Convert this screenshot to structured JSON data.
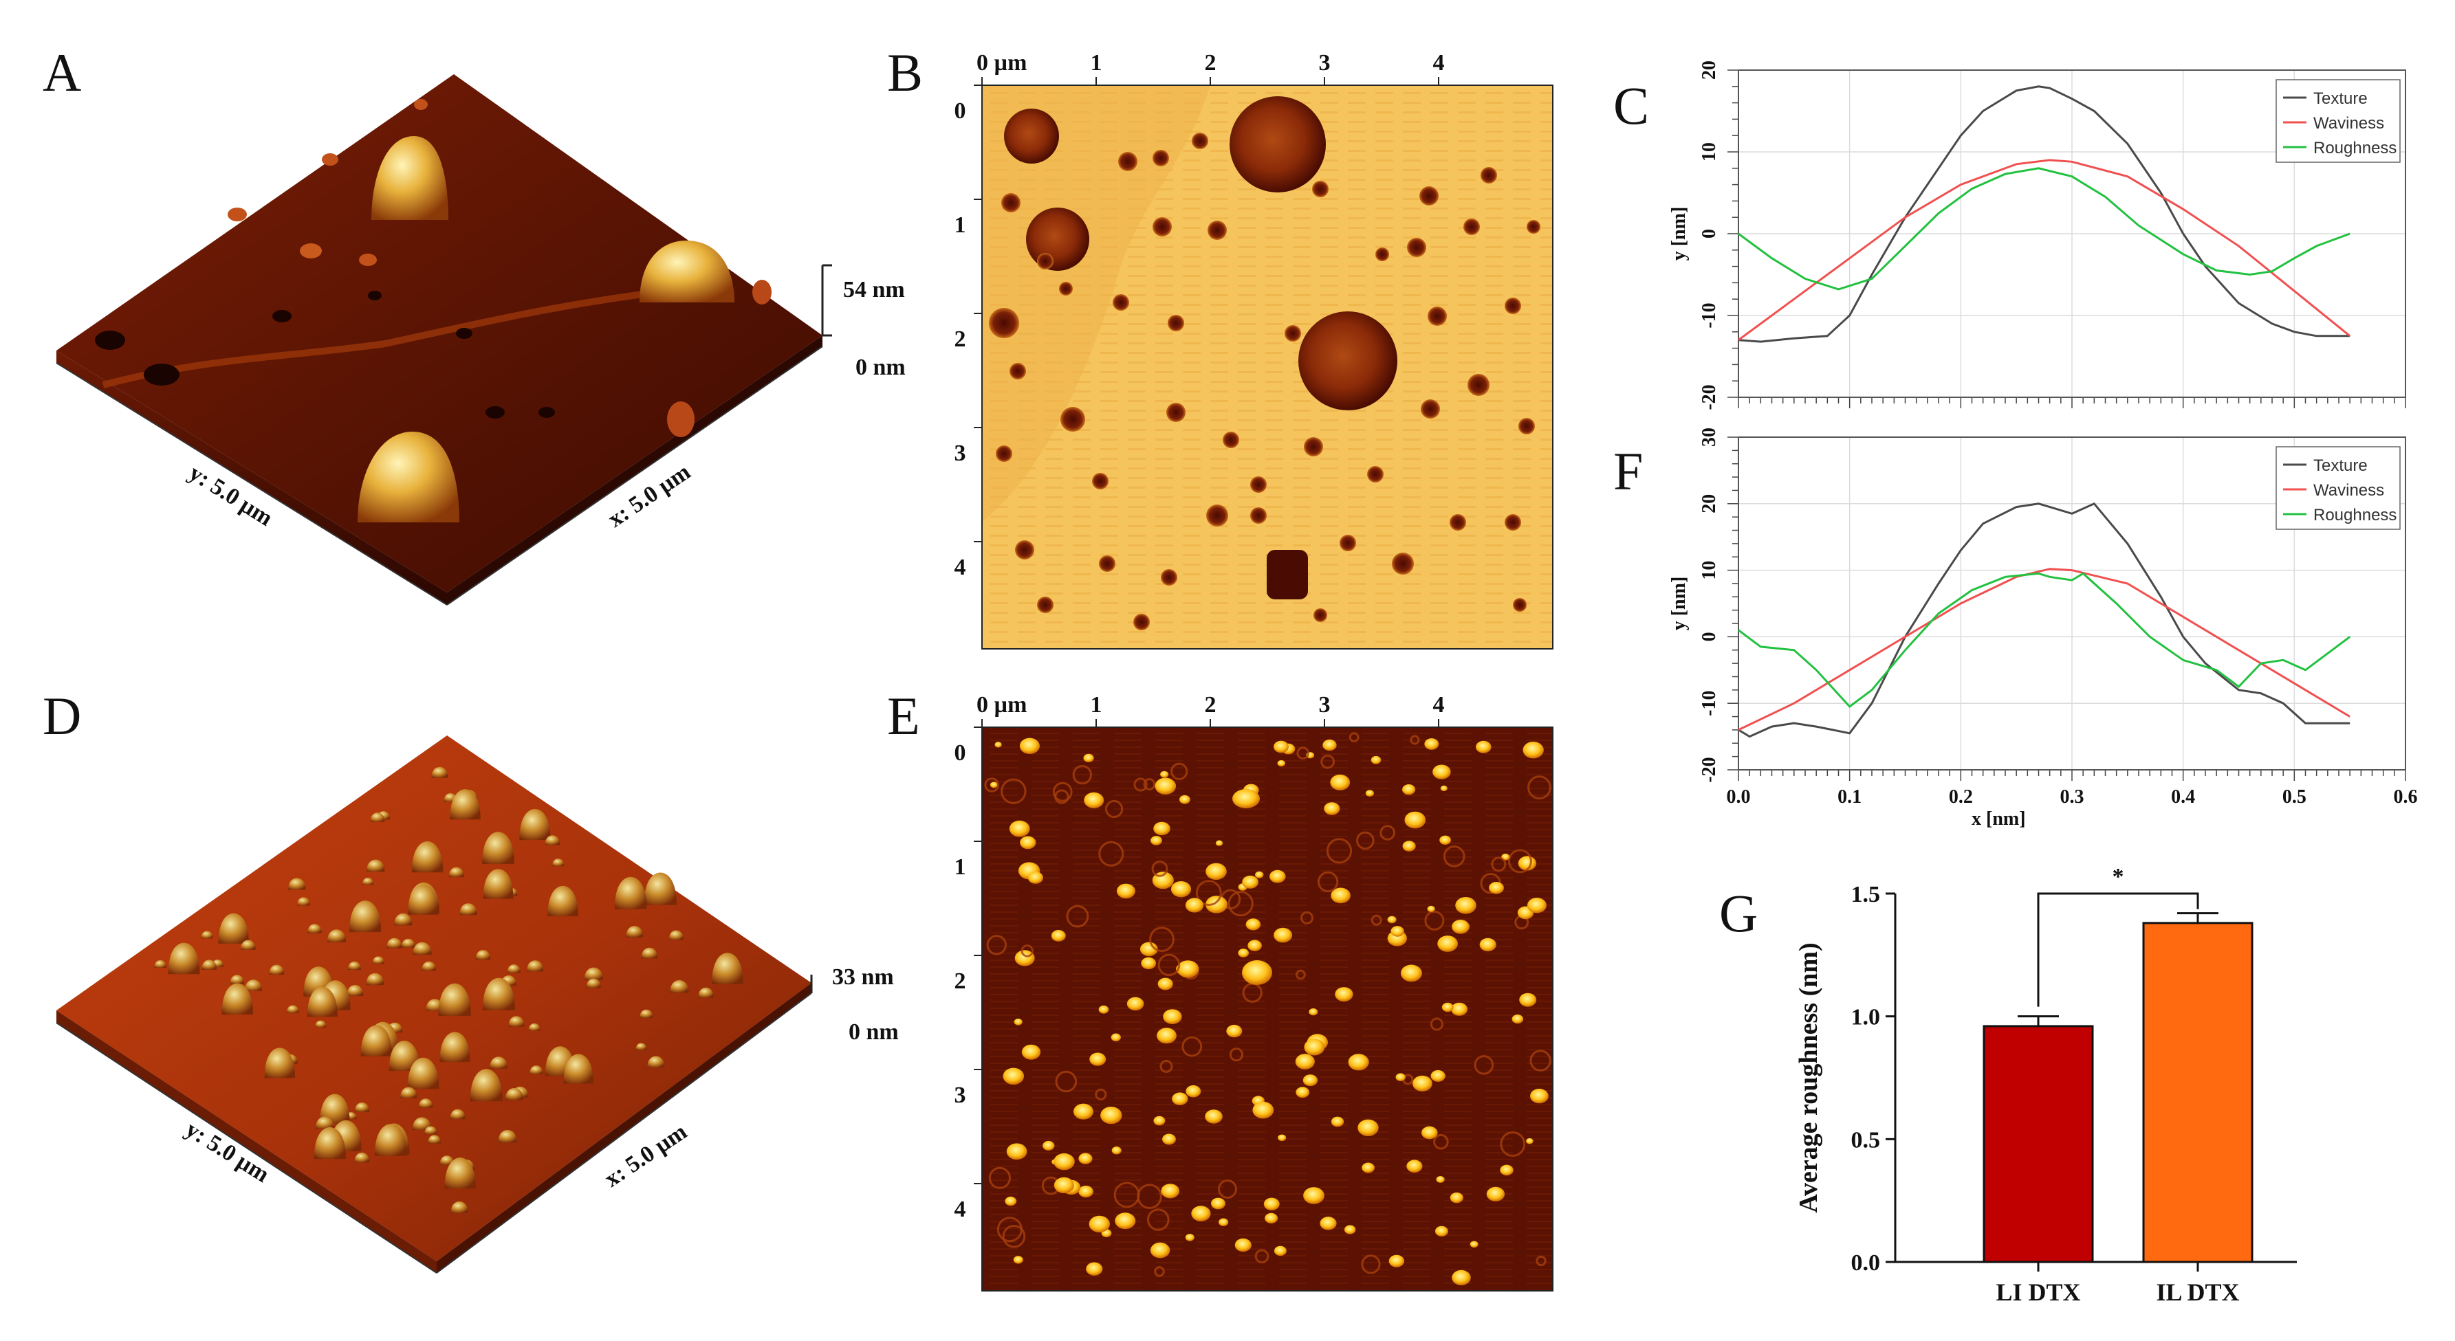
{
  "figure": {
    "panel_labels": [
      "A",
      "B",
      "C",
      "D",
      "E",
      "F",
      "G"
    ],
    "panels_3d": [
      {
        "z_top": "54 nm",
        "z_bottom": "0 nm",
        "y_axis": "y: 5.0 µm",
        "x_axis": "x: 5.0 µm"
      },
      {
        "z_top": "33 nm",
        "z_bottom": "0 nm",
        "y_axis": "y: 5.0 µm",
        "x_axis": "x: 5.0 µm"
      }
    ],
    "panels_2d": {
      "top_ticks": [
        "0 µm",
        "1",
        "2",
        "3",
        "4"
      ],
      "left_ticks": [
        "0",
        "1",
        "2",
        "3",
        "4"
      ]
    },
    "colors": {
      "texture": "#4a4a4a",
      "waviness": "#f05050",
      "roughness": "#22c140",
      "bar_li": "#c00000",
      "bar_il": "#ff6a10",
      "afm_bright": "#f7c65a",
      "afm_dark": "#5a0d02"
    }
  },
  "chart_data": [
    {
      "panel": "C",
      "type": "line",
      "xlabel": "x [nm]",
      "ylabel": "y [nm]",
      "xlim": [
        0,
        0.6
      ],
      "ylim": [
        -20,
        20
      ],
      "xticks": [
        "0.0",
        "0.1",
        "0.2",
        "0.3",
        "0.4",
        "0.5",
        "0.6"
      ],
      "yticks": [
        "20",
        "10",
        "0",
        "-10",
        "-20"
      ],
      "show_xlabel": false,
      "show_xticks": false,
      "legend": "top-right",
      "series": [
        {
          "name": "Texture",
          "color": "#4a4a4a",
          "x": [
            0,
            0.02,
            0.05,
            0.08,
            0.1,
            0.12,
            0.15,
            0.18,
            0.2,
            0.22,
            0.25,
            0.27,
            0.28,
            0.3,
            0.32,
            0.35,
            0.38,
            0.4,
            0.42,
            0.45,
            0.48,
            0.5,
            0.52,
            0.55
          ],
          "y": [
            -13,
            -13.2,
            -12.8,
            -12.5,
            -10,
            -5,
            2,
            8,
            12,
            15,
            17.5,
            18,
            17.8,
            16.5,
            15,
            11,
            5,
            0,
            -4,
            -8.5,
            -11,
            -12,
            -12.5,
            -12.5
          ]
        },
        {
          "name": "Waviness",
          "color": "#f05050",
          "x": [
            0,
            0.05,
            0.1,
            0.15,
            0.2,
            0.25,
            0.28,
            0.3,
            0.35,
            0.4,
            0.45,
            0.5,
            0.55
          ],
          "y": [
            -13,
            -8,
            -3,
            2,
            6,
            8.5,
            9,
            8.8,
            7,
            3,
            -1.5,
            -7,
            -12.5
          ]
        },
        {
          "name": "Roughness",
          "color": "#22c140",
          "x": [
            0,
            0.03,
            0.06,
            0.09,
            0.12,
            0.15,
            0.18,
            0.21,
            0.24,
            0.27,
            0.3,
            0.33,
            0.36,
            0.4,
            0.43,
            0.46,
            0.48,
            0.5,
            0.52,
            0.55
          ],
          "y": [
            0,
            -3,
            -5.5,
            -6.8,
            -5.5,
            -1.5,
            2.5,
            5.5,
            7.3,
            8,
            7,
            4.5,
            1,
            -2.5,
            -4.5,
            -5,
            -4.6,
            -3,
            -1.5,
            0
          ]
        }
      ]
    },
    {
      "panel": "F",
      "type": "line",
      "xlabel": "x [nm]",
      "ylabel": "y [nm]",
      "xlim": [
        0,
        0.6
      ],
      "ylim": [
        -20,
        30
      ],
      "xticks": [
        "0.0",
        "0.1",
        "0.2",
        "0.3",
        "0.4",
        "0.5",
        "0.6"
      ],
      "yticks": [
        "30",
        "20",
        "10",
        "0",
        "-10",
        "-20"
      ],
      "show_xlabel": true,
      "show_xticks": true,
      "legend": "top-right",
      "series": [
        {
          "name": "Texture",
          "color": "#4a4a4a",
          "x": [
            0,
            0.01,
            0.03,
            0.05,
            0.07,
            0.1,
            0.12,
            0.15,
            0.18,
            0.2,
            0.22,
            0.25,
            0.27,
            0.28,
            0.3,
            0.32,
            0.35,
            0.38,
            0.4,
            0.42,
            0.45,
            0.47,
            0.49,
            0.51,
            0.53,
            0.55
          ],
          "y": [
            -14,
            -15,
            -13.5,
            -13,
            -13.5,
            -14.5,
            -10,
            0,
            8,
            13,
            17,
            19.5,
            20,
            19.5,
            18.5,
            20,
            14,
            6,
            0,
            -4,
            -8,
            -8.5,
            -10,
            -13,
            -13,
            -13
          ]
        },
        {
          "name": "Waviness",
          "color": "#f05050",
          "x": [
            0,
            0.05,
            0.1,
            0.15,
            0.2,
            0.25,
            0.28,
            0.3,
            0.35,
            0.4,
            0.45,
            0.5,
            0.55
          ],
          "y": [
            -14,
            -10,
            -5,
            0,
            5,
            9,
            10.2,
            10,
            8,
            3,
            -2,
            -7,
            -12
          ]
        },
        {
          "name": "Roughness",
          "color": "#22c140",
          "x": [
            0,
            0.02,
            0.05,
            0.07,
            0.1,
            0.12,
            0.15,
            0.18,
            0.21,
            0.24,
            0.27,
            0.28,
            0.3,
            0.31,
            0.34,
            0.37,
            0.4,
            0.43,
            0.45,
            0.47,
            0.49,
            0.51,
            0.55
          ],
          "y": [
            1,
            -1.5,
            -2,
            -5,
            -10.5,
            -8,
            -2,
            3.5,
            7,
            9,
            9.5,
            9,
            8.5,
            9.5,
            5,
            0,
            -3.5,
            -5,
            -7.5,
            -4,
            -3.5,
            -5,
            0
          ]
        }
      ]
    },
    {
      "panel": "G",
      "type": "bar",
      "categories": [
        "LI DTX",
        "IL DTX"
      ],
      "values": [
        0.96,
        1.38
      ],
      "errors": [
        0.04,
        0.04
      ],
      "colors": [
        "#c00000",
        "#ff6a10"
      ],
      "ylabel": "Average roughness (nm)",
      "ylim": [
        0,
        1.5
      ],
      "yticks": [
        "0.0",
        "0.5",
        "1.0",
        "1.5"
      ],
      "significance": "*"
    }
  ]
}
